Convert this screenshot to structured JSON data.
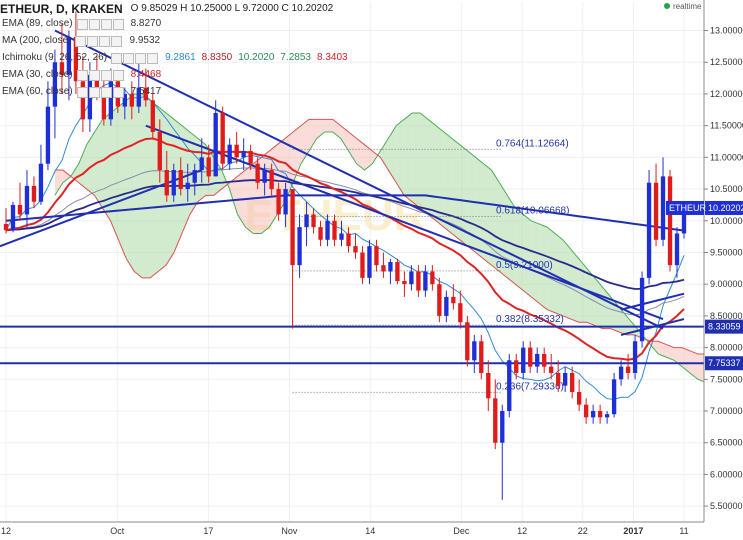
{
  "header": {
    "symbol": "ETHEUR, D, KRAKEN",
    "ohlc": "O 9.85029 H 10.25000 L 9.72000 C 10.20202",
    "status": "realtime"
  },
  "indicators": [
    {
      "name": "EMA (89, close)",
      "values": [
        {
          "text": "8.8270",
          "color": "#333333"
        }
      ]
    },
    {
      "name": "MA (200, close)",
      "values": [
        {
          "text": "9.9532",
          "color": "#333333"
        }
      ]
    },
    {
      "name": "Ichimoku (9, 26, 52, 26)",
      "values": [
        {
          "text": "9.2861",
          "color": "#2e8bd6"
        },
        {
          "text": "8.8350",
          "color": "#b22222"
        },
        {
          "text": "10.2020",
          "color": "#2e8b57"
        },
        {
          "text": "7.2853",
          "color": "#2e8b57"
        },
        {
          "text": "8.3403",
          "color": "#d22222"
        }
      ]
    },
    {
      "name": "EMA (30, close)",
      "values": [
        {
          "text": "8.4468",
          "color": "#d22222"
        }
      ]
    },
    {
      "name": "EMA (60, close)",
      "values": [
        {
          "text": "7.5417",
          "color": "#333333"
        }
      ]
    }
  ],
  "chart_data": {
    "type": "candlestick",
    "watermark": "ETHEUR",
    "x_ticks": [
      "12",
      "Oct",
      "17",
      "Nov",
      "14",
      "Dec",
      "12",
      "22",
      "2017",
      "11"
    ],
    "y_ticks": [
      "13.00000",
      "12.50000",
      "12.00000",
      "11.50000",
      "11.00000",
      "10.50000",
      "10.00000",
      "9.50000",
      "9.00000",
      "8.50000",
      "8.00000",
      "7.50000",
      "7.00000",
      "6.50000",
      "6.00000",
      "5.50000"
    ],
    "ylim": [
      5.25,
      13.45
    ],
    "last_price": {
      "label": "ETHEUR",
      "value": "10.20202"
    },
    "price_labels": [
      {
        "value": "8.33059"
      },
      {
        "value": "7.75337"
      }
    ],
    "fib_levels": [
      {
        "label": "0.764(11.12664)",
        "value": 11.12664
      },
      {
        "label": "0.618(10.06668)",
        "value": 10.06668
      },
      {
        "label": "0.5(9.21000)",
        "value": 9.21
      },
      {
        "label": "0.382(8.35332)",
        "value": 8.35332
      },
      {
        "label": "0.236(7.29336)",
        "value": 7.29336
      }
    ],
    "candles": [
      [
        9.95,
        10.2,
        9.8,
        9.85
      ],
      [
        9.85,
        10.3,
        9.82,
        10.25
      ],
      [
        10.25,
        10.6,
        10.0,
        10.1
      ],
      [
        10.1,
        10.8,
        9.9,
        10.55
      ],
      [
        10.55,
        10.7,
        10.2,
        10.3
      ],
      [
        10.3,
        11.2,
        10.25,
        10.9
      ],
      [
        10.9,
        12.2,
        10.8,
        11.8
      ],
      [
        11.8,
        12.7,
        11.3,
        12.5
      ],
      [
        12.5,
        13.1,
        12.0,
        12.3
      ],
      [
        12.3,
        13.0,
        11.9,
        12.9
      ],
      [
        12.9,
        13.3,
        12.0,
        12.2
      ],
      [
        12.2,
        12.6,
        11.4,
        11.6
      ],
      [
        11.6,
        12.5,
        11.4,
        12.3
      ],
      [
        12.3,
        12.6,
        11.9,
        12.0
      ],
      [
        12.0,
        12.3,
        11.5,
        11.6
      ],
      [
        11.6,
        12.4,
        11.5,
        12.2
      ],
      [
        12.2,
        12.3,
        11.7,
        11.8
      ],
      [
        11.8,
        12.1,
        11.6,
        12.0
      ],
      [
        12.0,
        12.2,
        11.6,
        11.8
      ],
      [
        11.8,
        12.6,
        11.7,
        12.1
      ],
      [
        12.1,
        12.4,
        11.8,
        11.9
      ],
      [
        11.9,
        12.0,
        11.3,
        11.4
      ],
      [
        11.4,
        11.6,
        10.6,
        10.8
      ],
      [
        10.8,
        11.1,
        10.3,
        10.4
      ],
      [
        10.4,
        10.9,
        10.3,
        10.8
      ],
      [
        10.8,
        11.0,
        10.4,
        10.5
      ],
      [
        10.5,
        10.9,
        10.3,
        10.6
      ],
      [
        10.6,
        10.9,
        10.4,
        10.8
      ],
      [
        10.8,
        11.3,
        10.6,
        11.0
      ],
      [
        11.0,
        11.2,
        10.6,
        10.7
      ],
      [
        10.7,
        11.9,
        10.7,
        11.7
      ],
      [
        11.7,
        11.8,
        10.8,
        10.9
      ],
      [
        10.9,
        11.3,
        10.8,
        11.2
      ],
      [
        11.2,
        11.4,
        10.9,
        11.0
      ],
      [
        11.0,
        11.3,
        10.8,
        11.1
      ],
      [
        11.1,
        11.2,
        10.8,
        10.9
      ],
      [
        10.9,
        11.0,
        10.5,
        10.6
      ],
      [
        10.6,
        10.9,
        10.4,
        10.8
      ],
      [
        10.8,
        10.9,
        10.4,
        10.5
      ],
      [
        10.5,
        10.6,
        10.0,
        10.1
      ],
      [
        10.1,
        10.6,
        9.9,
        10.5
      ],
      [
        10.5,
        10.5,
        8.3,
        9.3
      ],
      [
        9.3,
        10.1,
        9.1,
        9.9
      ],
      [
        9.9,
        10.3,
        9.6,
        10.1
      ],
      [
        10.1,
        10.2,
        9.8,
        9.9
      ],
      [
        9.9,
        10.0,
        9.6,
        9.7
      ],
      [
        9.7,
        10.1,
        9.6,
        10.0
      ],
      [
        10.0,
        10.1,
        9.6,
        9.7
      ],
      [
        9.7,
        10.0,
        9.6,
        9.8
      ],
      [
        9.8,
        9.9,
        9.5,
        9.6
      ],
      [
        9.6,
        9.8,
        9.4,
        9.5
      ],
      [
        9.5,
        9.6,
        9.0,
        9.1
      ],
      [
        9.1,
        9.7,
        9.0,
        9.6
      ],
      [
        9.6,
        9.7,
        9.2,
        9.3
      ],
      [
        9.3,
        9.5,
        9.1,
        9.2
      ],
      [
        9.2,
        9.4,
        9.0,
        9.35
      ],
      [
        9.35,
        9.4,
        9.0,
        9.05
      ],
      [
        9.05,
        9.2,
        8.8,
        9.0
      ],
      [
        9.0,
        9.3,
        8.9,
        9.2
      ],
      [
        9.2,
        9.3,
        8.8,
        8.9
      ],
      [
        8.9,
        9.3,
        8.8,
        9.2
      ],
      [
        9.2,
        9.3,
        8.9,
        9.0
      ],
      [
        9.0,
        9.1,
        8.4,
        8.5
      ],
      [
        8.5,
        8.9,
        8.4,
        8.8
      ],
      [
        8.8,
        9.0,
        8.6,
        8.7
      ],
      [
        8.7,
        8.9,
        8.3,
        8.4
      ],
      [
        8.4,
        8.5,
        7.7,
        7.8
      ],
      [
        7.8,
        8.2,
        7.6,
        8.1
      ],
      [
        8.1,
        8.2,
        7.5,
        7.6
      ],
      [
        7.6,
        7.8,
        7.0,
        7.2
      ],
      [
        7.2,
        7.5,
        6.4,
        6.5
      ],
      [
        6.5,
        7.1,
        5.6,
        7.0
      ],
      [
        7.0,
        7.9,
        6.9,
        7.8
      ],
      [
        7.8,
        7.9,
        7.5,
        7.6
      ],
      [
        7.6,
        8.1,
        7.5,
        8.0
      ],
      [
        8.0,
        8.1,
        7.6,
        7.7
      ],
      [
        7.7,
        8.0,
        7.6,
        7.9
      ],
      [
        7.9,
        8.0,
        7.6,
        7.7
      ],
      [
        7.7,
        7.9,
        7.5,
        7.6
      ],
      [
        7.6,
        7.8,
        7.3,
        7.4
      ],
      [
        7.4,
        7.7,
        7.3,
        7.6
      ],
      [
        7.6,
        7.7,
        7.2,
        7.3
      ],
      [
        7.3,
        7.5,
        7.0,
        7.1
      ],
      [
        7.1,
        7.2,
        6.8,
        6.9
      ],
      [
        6.9,
        7.1,
        6.8,
        7.0
      ],
      [
        7.0,
        7.1,
        6.8,
        6.9
      ],
      [
        6.9,
        7.0,
        6.8,
        6.95
      ],
      [
        6.95,
        7.6,
        6.9,
        7.5
      ],
      [
        7.5,
        7.8,
        7.4,
        7.7
      ],
      [
        7.7,
        7.9,
        7.5,
        7.6
      ],
      [
        7.6,
        8.2,
        7.5,
        8.1
      ],
      [
        8.1,
        9.2,
        8.0,
        9.1
      ],
      [
        9.1,
        10.8,
        9.0,
        10.6
      ],
      [
        10.6,
        10.9,
        9.6,
        9.7
      ],
      [
        9.7,
        11.0,
        9.6,
        10.7
      ],
      [
        10.7,
        10.8,
        9.2,
        9.3
      ],
      [
        9.3,
        9.9,
        9.1,
        9.8
      ],
      [
        9.8,
        10.25,
        9.72,
        10.2
      ]
    ],
    "ichimoku_kumo": {
      "span_a": [
        10.4,
        10.6,
        10.7,
        10.9,
        11.2,
        11.4,
        11.6,
        11.7,
        11.8,
        11.9,
        12.0,
        12.0,
        11.9,
        11.8,
        11.7,
        11.6,
        11.5,
        11.4,
        11.3,
        11.2,
        11.0,
        10.8,
        10.5,
        10.1,
        9.9,
        9.8,
        9.8,
        9.9,
        10.1,
        10.3,
        10.6,
        10.9,
        11.1,
        11.3,
        11.4,
        11.4,
        11.3,
        11.1,
        10.9,
        10.8,
        10.9,
        11.1,
        11.3,
        11.5,
        11.6,
        11.7,
        11.7,
        11.6,
        11.5,
        11.4,
        11.3,
        11.2,
        11.1,
        11.0,
        10.9,
        10.8,
        10.6,
        10.4,
        10.2,
        10.1,
        10.0,
        9.95,
        9.9,
        9.8,
        9.7,
        9.55,
        9.4,
        9.25,
        9.1,
        8.95,
        8.8,
        8.65,
        8.5,
        8.35,
        8.2,
        8.05,
        7.9,
        7.85,
        7.8,
        7.7,
        7.6,
        7.5,
        7.45,
        7.4,
        7.6,
        7.8
      ],
      "span_b": [
        10.8,
        10.8,
        10.7,
        10.6,
        10.5,
        10.4,
        10.2,
        10.0,
        9.7,
        9.4,
        9.2,
        9.1,
        9.1,
        9.2,
        9.3,
        9.5,
        9.8,
        10.1,
        10.3,
        10.4,
        10.4,
        10.5,
        10.6,
        10.7,
        10.8,
        10.9,
        11.0,
        11.1,
        11.2,
        11.3,
        11.4,
        11.5,
        11.6,
        11.6,
        11.6,
        11.6,
        11.5,
        11.4,
        11.3,
        11.2,
        11.1,
        11.0,
        10.8,
        10.6,
        10.4,
        10.3,
        10.2,
        10.1,
        10.0,
        9.9,
        9.8,
        9.7,
        9.6,
        9.5,
        9.4,
        9.3,
        9.2,
        9.1,
        9.0,
        8.9,
        8.8,
        8.7,
        8.6,
        8.55,
        8.5,
        8.45,
        8.4,
        8.4,
        8.35,
        8.3,
        8.3,
        8.25,
        8.2,
        8.2,
        8.15,
        8.1,
        8.1,
        8.05,
        8.0,
        8.0,
        7.95,
        7.9,
        7.9,
        7.85,
        7.8,
        7.75
      ]
    }
  }
}
